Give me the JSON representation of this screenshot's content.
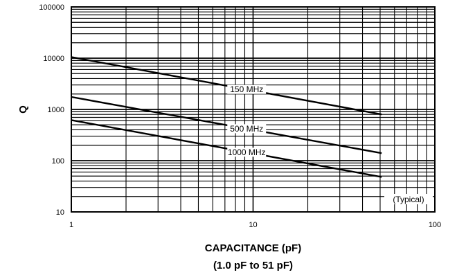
{
  "chart_data": {
    "type": "line",
    "title": "",
    "xlabel": "CAPACITANCE (pF)",
    "xlabel_sub": "(1.0 pF to 51 pF)",
    "ylabel": "Q",
    "x_scale": "log",
    "y_scale": "log",
    "xlim": [
      1,
      100
    ],
    "ylim": [
      10,
      100000
    ],
    "grid": true,
    "x_ticks": [
      "1",
      "10",
      "100"
    ],
    "y_ticks": [
      "10",
      "100",
      "1000",
      "10000",
      "100000"
    ],
    "annotation": "(Typical)",
    "series": [
      {
        "name": "150 MHz",
        "x": [
          1,
          51
        ],
        "y": [
          10500,
          800
        ]
      },
      {
        "name": "500 MHz",
        "x": [
          1,
          51
        ],
        "y": [
          1750,
          140
        ]
      },
      {
        "name": "1000 MHz",
        "x": [
          1,
          51
        ],
        "y": [
          620,
          48
        ]
      }
    ],
    "line_color": "#000000"
  }
}
